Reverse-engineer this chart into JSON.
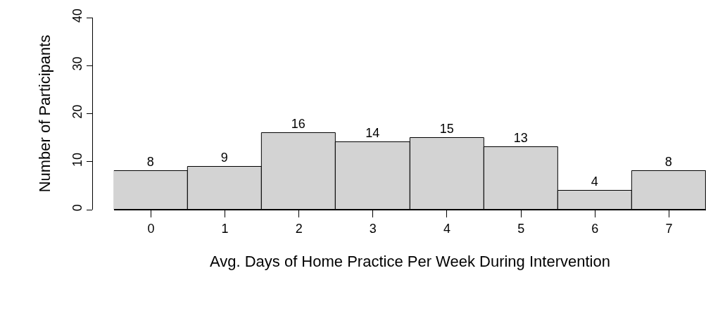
{
  "chart_data": {
    "type": "histogram",
    "xlabel": "Avg. Days of Home Practice Per Week During Intervention",
    "ylabel": "Number of Participants",
    "bins": [
      -0.5,
      0.5,
      1.5,
      2.5,
      3.5,
      4.5,
      5.5,
      6.5,
      7.5
    ],
    "values": [
      8,
      9,
      16,
      14,
      15,
      13,
      4,
      8
    ],
    "color": "#d3d3d3",
    "xlim": [
      -0.5,
      7.5
    ],
    "xticks": [
      0,
      1,
      2,
      3,
      4,
      5,
      6,
      7
    ],
    "ylim": [
      0,
      40
    ],
    "yticks": [
      0,
      10,
      20,
      30,
      40
    ],
    "data_labels": true
  }
}
